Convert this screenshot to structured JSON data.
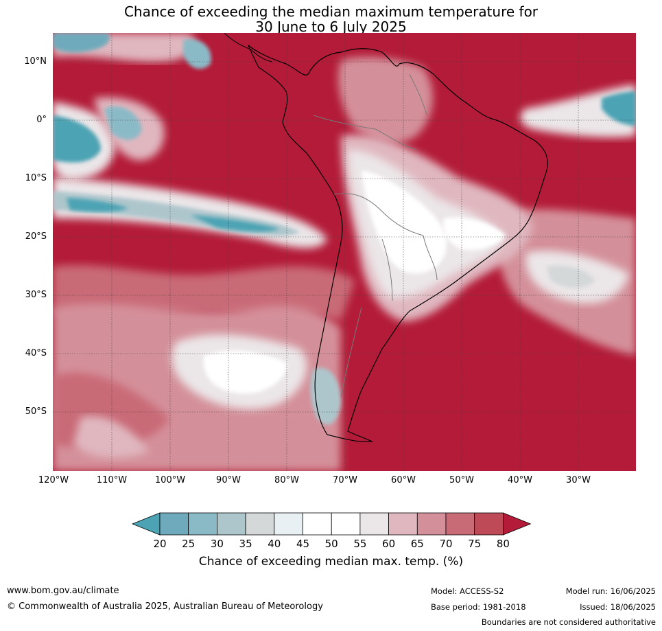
{
  "title": {
    "line1": "Chance of exceeding the median maximum temperature for",
    "line2": "30 June to 6 July 2025"
  },
  "map": {
    "lat_labels": [
      "10°N",
      "0°",
      "10°S",
      "20°S",
      "30°S",
      "40°S",
      "50°S"
    ],
    "lon_labels": [
      "120°W",
      "110°W",
      "100°W",
      "90°W",
      "80°W",
      "70°W",
      "60°W",
      "50°W",
      "40°W",
      "30°W"
    ],
    "ocean_dominant_color": "#b31b38"
  },
  "colorbar": {
    "ticks": [
      "20",
      "25",
      "30",
      "35",
      "40",
      "45",
      "50",
      "55",
      "60",
      "65",
      "70",
      "75",
      "80"
    ],
    "colors": [
      "#4ba3b4",
      "#6eaabb",
      "#8bbac7",
      "#adc6cc",
      "#d4d8d9",
      "#e9f0f3",
      "#ffffff",
      "#ffffff",
      "#ebe6e8",
      "#e0b7bf",
      "#d4909a",
      "#c96b77",
      "#be4a57",
      "#b31b38"
    ],
    "label": "Chance of exceeding median max. temp. (%)"
  },
  "footer": {
    "website": "www.bom.gov.au/climate",
    "copyright": "© Commonwealth of Australia 2025, Australian Bureau of Meteorology",
    "model": "Model: ACCESS-S2",
    "base_period": "Base period: 1981-2018",
    "model_run": "Model run: 16/06/2025",
    "issued": "Issued: 18/06/2025",
    "disclaimer": "Boundaries are not considered authoritative"
  }
}
